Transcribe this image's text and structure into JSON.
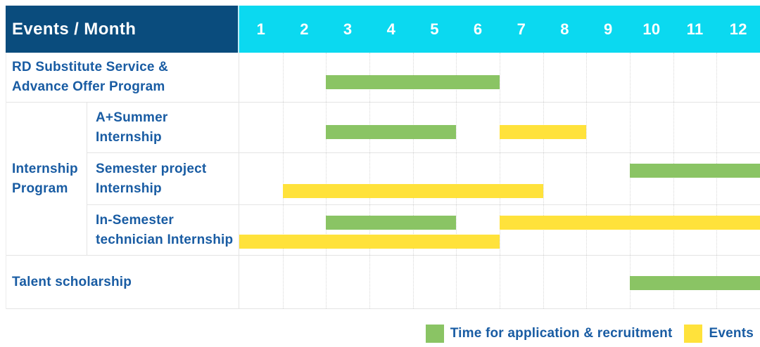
{
  "header": {
    "corner_label": "Events / Month"
  },
  "legend": {
    "items": [
      {
        "label": "Time for application & recruitment",
        "series": "application"
      },
      {
        "label": "Events",
        "series": "events"
      }
    ]
  },
  "colors": {
    "header_navy": "#0A4C7D",
    "header_cyan": "#0BD9F0",
    "label_blue": "#195CA3",
    "application_green": "#8AC464",
    "events_yellow": "#FFE23B",
    "grid_solid": "#E4E4E4",
    "grid_dotted": "#D8D8D8"
  },
  "chart_data": {
    "type": "bar",
    "subtype": "gantt-month-timeline",
    "title": "Events / Month",
    "months": [
      "1",
      "2",
      "3",
      "4",
      "5",
      "6",
      "7",
      "8",
      "9",
      "10",
      "11",
      "12"
    ],
    "x_range": [
      1,
      12
    ],
    "grid": "dotted-vertical-month-lines",
    "legend_position": "bottom-right",
    "group": {
      "label_lines": [
        "Internship",
        "Program"
      ],
      "row_indexes": [
        1,
        2,
        3
      ]
    },
    "series": [
      {
        "key": "application",
        "name": "Time for application & recruitment",
        "color": "#8AC464"
      },
      {
        "key": "events",
        "name": "Events",
        "color": "#FFE23B"
      }
    ],
    "rows": [
      {
        "label_lines": [
          "RD Substitute Service &",
          "Advance Offer Program"
        ],
        "in_group": false,
        "bars": [
          {
            "series": "application",
            "start_month": 3,
            "end_month": 6,
            "line": 0
          }
        ]
      },
      {
        "label_lines": [
          "A+Summer",
          "Internship"
        ],
        "in_group": true,
        "bars": [
          {
            "series": "application",
            "start_month": 3,
            "end_month": 5,
            "line": 0
          },
          {
            "series": "events",
            "start_month": 7,
            "end_month": 8,
            "line": 0
          }
        ]
      },
      {
        "label_lines": [
          "Semester project",
          "Internship"
        ],
        "in_group": true,
        "bars": [
          {
            "series": "application",
            "start_month": 10,
            "end_month": 12,
            "line": 0
          },
          {
            "series": "events",
            "start_month": 2,
            "end_month": 7,
            "line": 1
          }
        ]
      },
      {
        "label_lines": [
          "In-Semester",
          "technician Internship"
        ],
        "in_group": true,
        "bars": [
          {
            "series": "application",
            "start_month": 3,
            "end_month": 5,
            "line": 0
          },
          {
            "series": "events",
            "start_month": 7,
            "end_month": 12,
            "line": 0
          },
          {
            "series": "events",
            "start_month": 1,
            "end_month": 6,
            "line": 1
          }
        ]
      },
      {
        "label_lines": [
          "Talent scholarship"
        ],
        "in_group": false,
        "bars": [
          {
            "series": "application",
            "start_month": 10,
            "end_month": 12,
            "line": 0
          }
        ]
      }
    ]
  }
}
